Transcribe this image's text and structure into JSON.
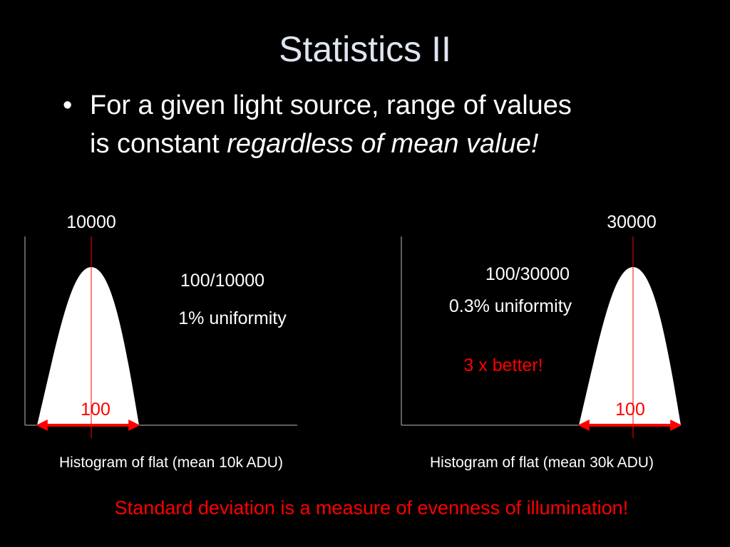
{
  "title": "Statistics II",
  "bullet": {
    "line1": "For a given light source, range of values",
    "line2": "is constant",
    "emphasis": "regardless of mean value!"
  },
  "left_panel": {
    "mean_label": "10000",
    "ratio": "100/10000",
    "uniformity": "1% uniformity",
    "width_label": "100",
    "caption": "Histogram of flat (mean 10k ADU)"
  },
  "right_panel": {
    "mean_label": "30000",
    "ratio": "100/30000",
    "uniformity": "0.3% uniformity",
    "note": "3 x better!",
    "width_label": "100",
    "caption": "Histogram of flat (mean 30k ADU)"
  },
  "footer": "Standard deviation is a measure of evenness of illumination!"
}
